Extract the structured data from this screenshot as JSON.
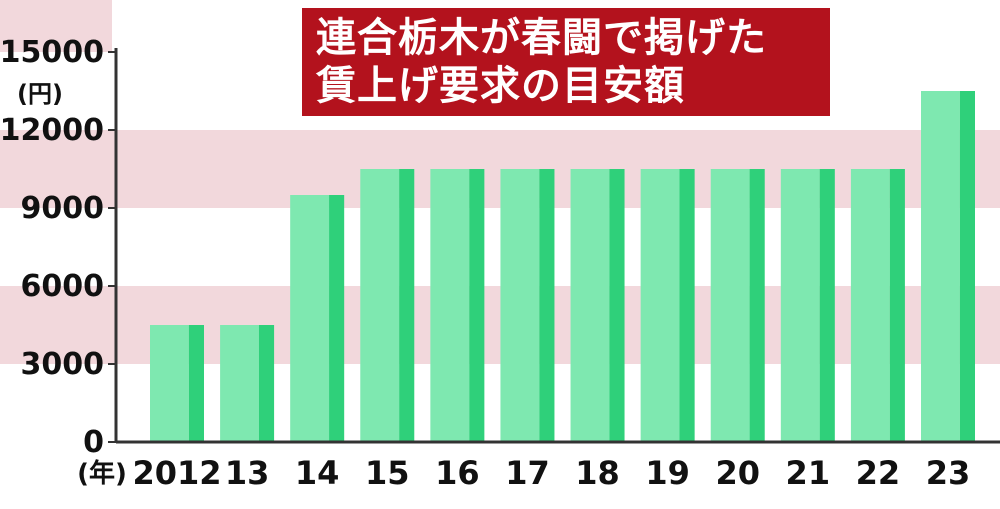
{
  "colors": {
    "band": "#f2d8dc",
    "background": "#ffffff",
    "bar_light": "#7ee8b0",
    "bar_dark": "#2fd07a",
    "title_bg": "#b3121d",
    "title_text": "#ffffff",
    "axis": "#333333",
    "text": "#111111"
  },
  "title": {
    "line1": "連合栃木が春闘で掲げた",
    "line2": "賃上げ要求の目安額"
  },
  "chart_data": {
    "type": "bar",
    "title": "連合栃木が春闘で掲げた賃上げ要求の目安額",
    "ylabel": "(円)",
    "xlabel": "(年)",
    "categories": [
      "2012",
      "13",
      "14",
      "15",
      "16",
      "17",
      "18",
      "19",
      "20",
      "21",
      "22",
      "23"
    ],
    "values": [
      4500,
      4500,
      9500,
      10500,
      10500,
      10500,
      10500,
      10500,
      10500,
      10500,
      10500,
      13500
    ],
    "ylim": [
      0,
      15000
    ],
    "yticks": [
      0,
      3000,
      6000,
      9000,
      12000,
      15000
    ],
    "ytick_labels": [
      "0",
      "3000",
      "6000",
      "9000",
      "12000",
      "15000"
    ],
    "grid": "alternating horizontal bands"
  }
}
